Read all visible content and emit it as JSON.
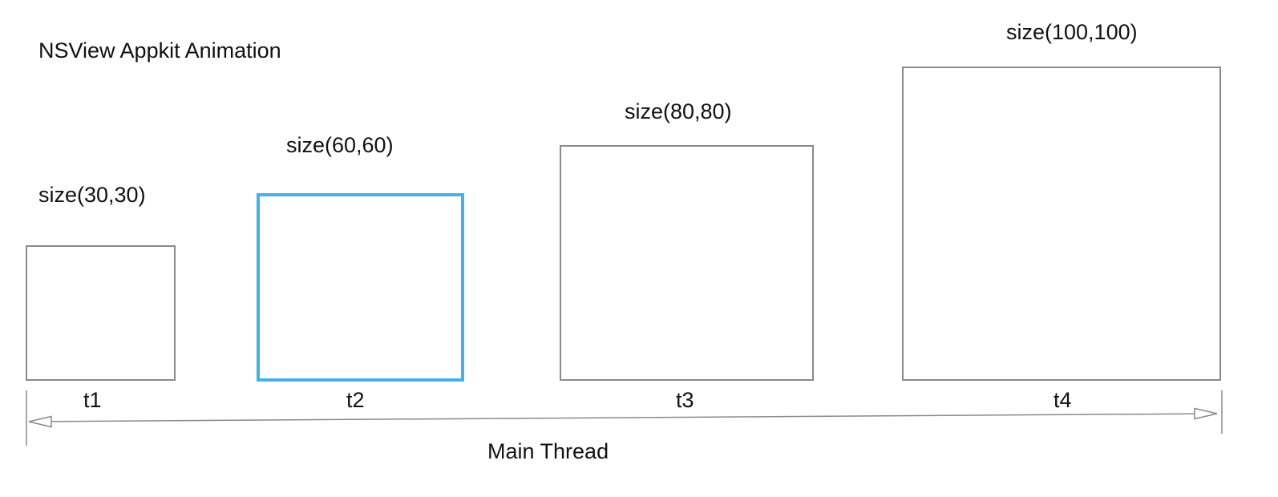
{
  "title": "NSView Appkit Animation",
  "frames": [
    {
      "time_label": "t1",
      "size_label": "size(30,30)",
      "highlighted": false
    },
    {
      "time_label": "t2",
      "size_label": "size(60,60)",
      "highlighted": true
    },
    {
      "time_label": "t3",
      "size_label": "size(80,80)",
      "highlighted": false
    },
    {
      "time_label": "t4",
      "size_label": "size(100,100)",
      "highlighted": false
    }
  ],
  "timeline_label": "Main Thread",
  "colors": {
    "box_border": "#8a8a8a",
    "highlight_border": "#45b1e8",
    "axis": "#8a8a8a"
  }
}
